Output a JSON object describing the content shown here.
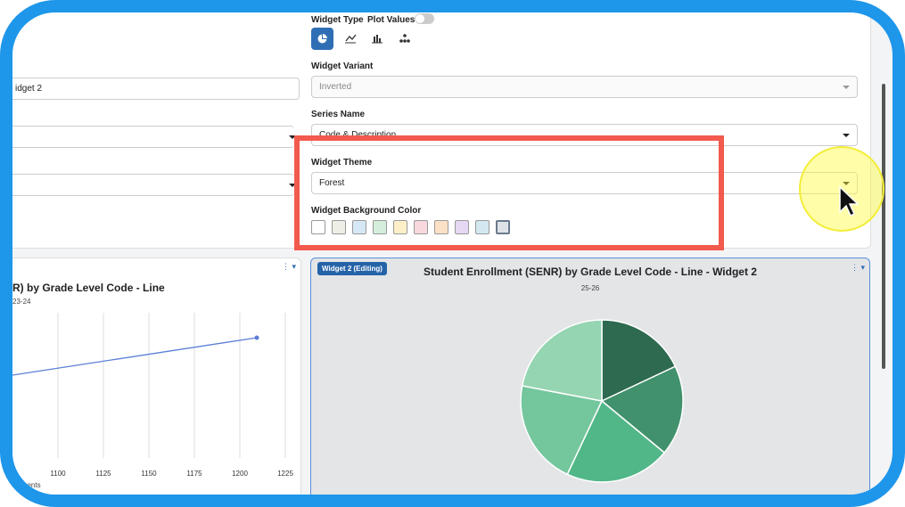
{
  "form": {
    "widget_type_label": "Widget Type",
    "plot_values_label": "Plot Values",
    "widget_variant_label": "Widget Variant",
    "widget_variant_value": "Inverted",
    "series_name_label": "Series Name",
    "series_name_value": "Code & Description",
    "widget_theme_label": "Widget Theme",
    "widget_theme_value": "Forest",
    "background_color_label": "Widget Background Color",
    "widget_name_value": "idget 2"
  },
  "left_widget": {
    "title": "R) by Grade Level Code - Line",
    "subtitle": "23-24",
    "x_label": "nents",
    "xticks": [
      1100,
      1125,
      1150,
      1175,
      1200,
      1225
    ]
  },
  "right_widget": {
    "badge": "Widget 2 (Editing)",
    "chart_data": {
      "type": "pie",
      "title": "Student Enrollment (SENR) by Grade Level Code - Line - Widget 2",
      "subtitle": "25-26",
      "values": [
        18,
        18,
        21,
        21,
        22
      ],
      "colors": [
        "#2d6a4f",
        "#40916c",
        "#52b788",
        "#74c69d",
        "#95d5b2"
      ]
    }
  }
}
